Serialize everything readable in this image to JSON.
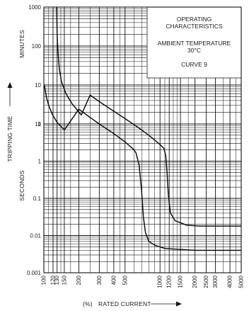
{
  "chart_data": {
    "type": "line",
    "title": "OPERATING CHARACTERISTICS",
    "subtitle_lines": [
      "AMBIENT TEMPERATURE",
      "30°C",
      "CURVE 9"
    ],
    "ylabel": "TRIPPING TIME",
    "ylabel_upper": "MINUTES",
    "ylabel_lower": "SECONDS",
    "xlabel_prefix": "(%)",
    "xlabel": "RATED CURRENT",
    "x_scale": "log",
    "y_scale": "log",
    "xlim": [
      100,
      5000
    ],
    "x_ticks": [
      100,
      120,
      130,
      150,
      200,
      300,
      400,
      500,
      1000,
      1200,
      1500,
      2000,
      2500,
      3000,
      4000,
      5000
    ],
    "x_tick_labels": [
      "100",
      "120",
      "130",
      "150",
      "200",
      "300",
      "400",
      "500",
      "1000",
      "1200",
      "1500",
      "2000",
      "2500",
      "3000",
      "4000",
      "5000"
    ],
    "minutes_ylim": [
      1,
      1000
    ],
    "minutes_ticks": [
      1000,
      100,
      10,
      1
    ],
    "minutes_tick_labels": [
      "1000",
      "100",
      "10",
      "1"
    ],
    "seconds_ylim": [
      0.001,
      10
    ],
    "seconds_ticks": [
      10,
      1,
      0.1,
      0.01,
      0.001
    ],
    "seconds_tick_labels": [
      "10",
      "1",
      "0.1",
      "0.01",
      "0.001"
    ],
    "grid": true,
    "series": [
      {
        "band": "upper",
        "points": [
          {
            "x": 129,
            "min": 1000
          },
          {
            "x": 130,
            "min": 200
          },
          {
            "x": 132,
            "min": 80
          },
          {
            "x": 136,
            "min": 25
          },
          {
            "x": 142,
            "min": 12
          },
          {
            "x": 155,
            "min": 6
          },
          {
            "x": 175,
            "min": 3.3
          },
          {
            "x": 210,
            "min": 1.7
          },
          {
            "x": 250,
            "s": 60
          },
          {
            "x": 300,
            "s": 40
          },
          {
            "x": 400,
            "s": 22
          },
          {
            "x": 500,
            "s": 14
          },
          {
            "x": 650,
            "s": 8
          },
          {
            "x": 800,
            "s": 5
          },
          {
            "x": 1000,
            "s": 2.8
          },
          {
            "x": 1080,
            "s": 2.2
          },
          {
            "x": 1120,
            "s": 1.4
          },
          {
            "x": 1150,
            "s": 0.5
          },
          {
            "x": 1180,
            "s": 0.12
          },
          {
            "x": 1230,
            "s": 0.04
          },
          {
            "x": 1350,
            "s": 0.025
          },
          {
            "x": 1700,
            "s": 0.019
          },
          {
            "x": 2200,
            "s": 0.018
          },
          {
            "x": 5000,
            "s": 0.018
          }
        ]
      },
      {
        "band": "lower",
        "points": [
          {
            "x": 101,
            "min": 10
          },
          {
            "x": 105,
            "min": 5
          },
          {
            "x": 110,
            "min": 3
          },
          {
            "x": 118,
            "min": 1.8
          },
          {
            "x": 130,
            "min": 1.1
          },
          {
            "x": 150,
            "min": 0.7
          },
          {
            "x": 200,
            "s": 25
          },
          {
            "x": 250,
            "s": 15
          },
          {
            "x": 300,
            "s": 10
          },
          {
            "x": 400,
            "s": 5.5
          },
          {
            "x": 500,
            "s": 3.3
          },
          {
            "x": 580,
            "s": 2.2
          },
          {
            "x": 620,
            "s": 1.7
          },
          {
            "x": 660,
            "s": 0.8
          },
          {
            "x": 690,
            "s": 0.2
          },
          {
            "x": 720,
            "s": 0.03
          },
          {
            "x": 750,
            "s": 0.012
          },
          {
            "x": 800,
            "s": 0.007
          },
          {
            "x": 900,
            "s": 0.0055
          },
          {
            "x": 1100,
            "s": 0.0045
          },
          {
            "x": 2000,
            "s": 0.004
          },
          {
            "x": 5000,
            "s": 0.004
          }
        ]
      }
    ]
  }
}
